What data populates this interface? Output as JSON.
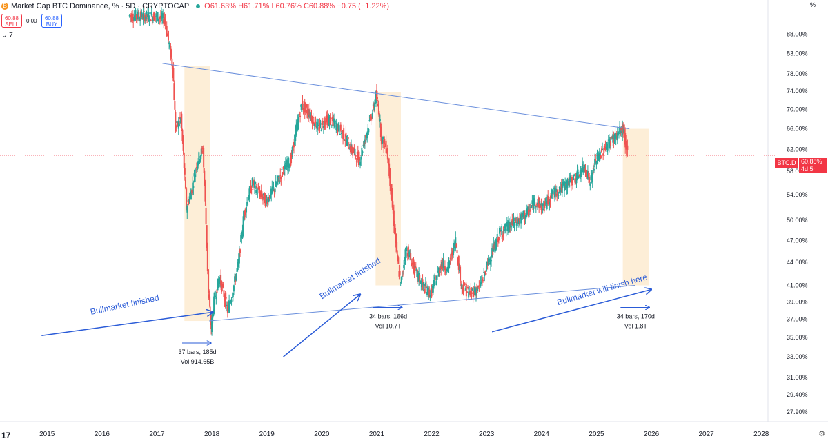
{
  "header": {
    "title": "Market Cap BTC Dominance, % · 5D · CRYPTOCAP",
    "ohlc_o": "O61.63%",
    "ohlc_h": "H61.71%",
    "ohlc_l": "L60.76%",
    "ohlc_c": "C60.88%",
    "change": "−0.75 (−1.22%)",
    "sell_value": "60.88",
    "sell_label": "SELL",
    "spread": "0.00",
    "buy_value": "60.88",
    "buy_label": "BUY",
    "indicators": "⌄ 7",
    "percent_toggle": "%"
  },
  "colors": {
    "up": "#26a69a",
    "down": "#ef5350",
    "trendline": "#6a8fdc",
    "annotation": "#2a5bd7",
    "highlight": "#fdebd0",
    "last_price": "#f23645"
  },
  "chart_data": {
    "type": "candlestick",
    "title": "Market Cap BTC Dominance, %",
    "price_scale": "log",
    "x_range": [
      "2015",
      "2028"
    ],
    "y_range": [
      27.9,
      96
    ],
    "x_ticks": [
      "2015",
      "2016",
      "2017",
      "2018",
      "2019",
      "2020",
      "2021",
      "2022",
      "2023",
      "2024",
      "2025",
      "2026",
      "2027",
      "2028"
    ],
    "y_ticks": [
      "88.00%",
      "83.00%",
      "78.00%",
      "74.00%",
      "70.00%",
      "66.00%",
      "62.00%",
      "58.00%",
      "54.00%",
      "50.00%",
      "47.00%",
      "44.00%",
      "41.00%",
      "39.00%",
      "37.00%",
      "35.00%",
      "33.00%",
      "31.00%",
      "29.40%",
      "27.90%"
    ],
    "last_price": {
      "symbol": "BTC.D",
      "value": "60.88%",
      "countdown": "4d 5h",
      "value_num": 60.88
    },
    "price_path": [
      [
        2016.5,
        93
      ],
      [
        2017.0,
        93
      ],
      [
        2017.15,
        92
      ],
      [
        2017.25,
        84
      ],
      [
        2017.3,
        79.5
      ],
      [
        2017.35,
        66
      ],
      [
        2017.45,
        68
      ],
      [
        2017.55,
        52
      ],
      [
        2017.65,
        55
      ],
      [
        2017.75,
        60
      ],
      [
        2017.85,
        62
      ],
      [
        2017.95,
        40
      ],
      [
        2018.0,
        36
      ],
      [
        2018.05,
        39
      ],
      [
        2018.15,
        42
      ],
      [
        2018.3,
        38
      ],
      [
        2018.4,
        40.5
      ],
      [
        2018.5,
        44
      ],
      [
        2018.6,
        51
      ],
      [
        2018.75,
        56
      ],
      [
        2018.9,
        54
      ],
      [
        2019.0,
        53
      ],
      [
        2019.15,
        55
      ],
      [
        2019.3,
        58
      ],
      [
        2019.45,
        60
      ],
      [
        2019.55,
        66
      ],
      [
        2019.65,
        71
      ],
      [
        2019.8,
        69
      ],
      [
        2019.95,
        66
      ],
      [
        2020.1,
        68
      ],
      [
        2020.25,
        67
      ],
      [
        2020.4,
        65
      ],
      [
        2020.55,
        62
      ],
      [
        2020.7,
        60
      ],
      [
        2020.8,
        64
      ],
      [
        2020.95,
        70
      ],
      [
        2021.0,
        73
      ],
      [
        2021.05,
        70
      ],
      [
        2021.1,
        64
      ],
      [
        2021.2,
        62
      ],
      [
        2021.3,
        52
      ],
      [
        2021.38,
        45
      ],
      [
        2021.45,
        41
      ],
      [
        2021.55,
        46
      ],
      [
        2021.7,
        43
      ],
      [
        2021.85,
        41
      ],
      [
        2022.0,
        40
      ],
      [
        2022.1,
        42
      ],
      [
        2022.2,
        44
      ],
      [
        2022.3,
        43
      ],
      [
        2022.45,
        47
      ],
      [
        2022.55,
        41
      ],
      [
        2022.7,
        40
      ],
      [
        2022.85,
        40.5
      ],
      [
        2022.95,
        42
      ],
      [
        2023.1,
        45
      ],
      [
        2023.25,
        48
      ],
      [
        2023.4,
        49
      ],
      [
        2023.6,
        50
      ],
      [
        2023.75,
        51
      ],
      [
        2023.9,
        53
      ],
      [
        2024.05,
        52
      ],
      [
        2024.2,
        54
      ],
      [
        2024.35,
        55
      ],
      [
        2024.5,
        56
      ],
      [
        2024.65,
        57
      ],
      [
        2024.8,
        59
      ],
      [
        2024.9,
        56
      ],
      [
        2025.0,
        60
      ],
      [
        2025.15,
        62
      ],
      [
        2025.3,
        64
      ],
      [
        2025.45,
        65.5
      ],
      [
        2025.5,
        66
      ],
      [
        2025.55,
        62.5
      ],
      [
        2025.58,
        60.88
      ]
    ],
    "trendlines": [
      {
        "from": [
          2017.1,
          80.5
        ],
        "to": [
          2025.6,
          66.0
        ]
      },
      {
        "from": [
          2017.95,
          36.8
        ],
        "to": [
          2025.7,
          41.0
        ]
      }
    ],
    "highlight_ranges": [
      {
        "x0": 2017.5,
        "x1": 2017.97,
        "y0": 36.8,
        "y1": 79.8,
        "label_lines": [
          "37 bars, 185d",
          "Vol 914.65B"
        ]
      },
      {
        "x0": 2020.98,
        "x1": 2021.44,
        "y0": 41.0,
        "y1": 73.7,
        "label_lines": [
          "34 bars, 166d",
          "Vol 10.7T"
        ]
      },
      {
        "x0": 2025.48,
        "x1": 2025.95,
        "y0": 41.0,
        "y1": 66.0,
        "label_lines": [
          "34 bars, 170d",
          "Vol 1.8T"
        ]
      }
    ],
    "annotations": [
      {
        "text": "Bullmarket finished",
        "x": 2015.8,
        "y": 37.5,
        "angle": -12
      },
      {
        "text": "Bullmarket finished",
        "x": 2020.0,
        "y": 39.3,
        "angle": -32
      },
      {
        "text": "Bullmarket will finish here",
        "x": 2024.3,
        "y": 38.6,
        "angle": -16
      }
    ],
    "arrows": [
      {
        "from": [
          2014.9,
          35.2
        ],
        "to": [
          2018.02,
          37.8
        ]
      },
      {
        "from": [
          2019.3,
          33.0
        ],
        "to": [
          2020.7,
          39.9
        ]
      },
      {
        "from": [
          2023.1,
          35.6
        ],
        "to": [
          2026.0,
          40.5
        ]
      }
    ]
  }
}
